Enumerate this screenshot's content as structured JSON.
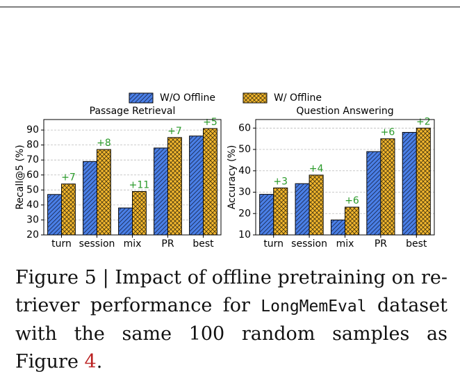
{
  "legend": [
    {
      "name": "W/O Offline",
      "color": "#4a7fe6",
      "hatch": "/"
    },
    {
      "name": "W/ Offline",
      "color": "#f5b82e",
      "hatch": "x"
    }
  ],
  "chart_data": [
    {
      "type": "bar",
      "title": "Passage Retrieval",
      "y_label": "Recall@5 (%)",
      "categories": [
        "turn",
        "session",
        "mix",
        "PR",
        "best"
      ],
      "series": [
        {
          "values": [
            47,
            69,
            38,
            78,
            86
          ]
        },
        {
          "values": [
            54,
            77,
            49,
            85,
            91
          ]
        }
      ],
      "gains": [
        {
          "value": 7,
          "label": "+7"
        },
        {
          "value": 8,
          "label": "+8"
        },
        {
          "value": 11,
          "label": "+11"
        },
        {
          "value": 7,
          "label": "+7"
        },
        {
          "value": 5,
          "label": "+5"
        }
      ],
      "gain_color": "#2a9a2a",
      "ylim": [
        20,
        97
      ],
      "yticks": [
        20,
        30,
        40,
        50,
        60,
        70,
        80,
        90
      ],
      "grid": true
    },
    {
      "type": "bar",
      "title": "Question Answering",
      "y_label": "Accuracy (%)",
      "categories": [
        "turn",
        "session",
        "mix",
        "PR",
        "best"
      ],
      "series": [
        {
          "values": [
            29,
            34,
            17,
            49,
            58
          ]
        },
        {
          "values": [
            32,
            38,
            23,
            55,
            60
          ]
        }
      ],
      "gains": [
        {
          "value": 3,
          "label": "+3"
        },
        {
          "value": 4,
          "label": "+4"
        },
        {
          "value": 6,
          "label": "+6"
        },
        {
          "value": 6,
          "label": "+6"
        },
        {
          "value": 2,
          "label": "+2"
        }
      ],
      "gain_color": "#2a9a2a",
      "ylim": [
        10,
        64
      ],
      "yticks": [
        10,
        20,
        30,
        40,
        50,
        60
      ],
      "grid": true
    }
  ],
  "caption": {
    "lead": "Figure 5 | Impact of offline pretraining on re-triever performance for ",
    "code": "LongMemEval",
    "middle": " dataset with the same 100 random samples as Figure ",
    "ref": "4",
    "end": "."
  }
}
